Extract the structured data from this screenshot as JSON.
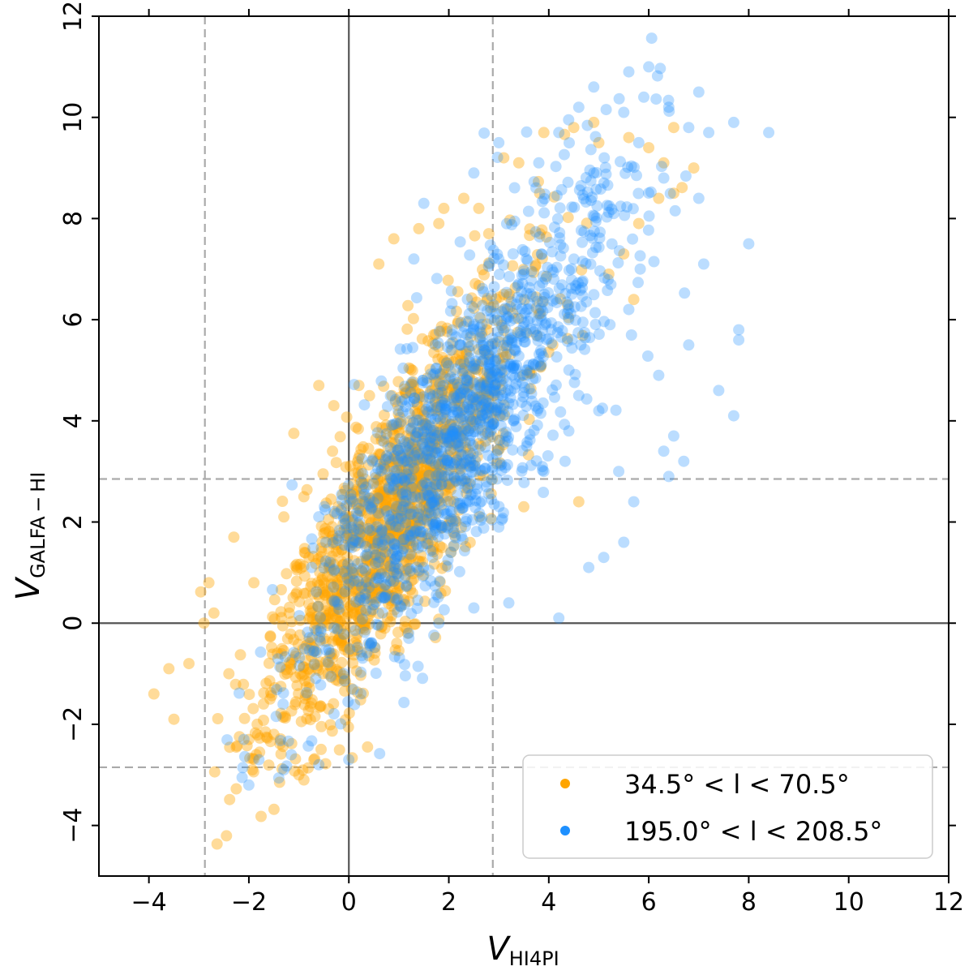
{
  "chart_data": {
    "type": "scatter",
    "title": "",
    "xlabel": {
      "main": "V",
      "sub": "HI4PI"
    },
    "ylabel": {
      "main": "V",
      "sub": "GALFA − HI"
    },
    "xlim": [
      -5,
      12
    ],
    "ylim": [
      -5,
      12
    ],
    "xticks": [
      -4,
      -2,
      0,
      2,
      4,
      6,
      8,
      10,
      12
    ],
    "yticks": [
      -4,
      -2,
      0,
      2,
      4,
      6,
      8,
      10,
      12
    ],
    "xtick_labels": [
      "−4",
      "−2",
      "0",
      "2",
      "4",
      "6",
      "8",
      "10",
      "12"
    ],
    "ytick_labels": [
      "−4",
      "−2",
      "0",
      "2",
      "4",
      "6",
      "8",
      "10",
      "12"
    ],
    "grid": false,
    "reference_lines": {
      "solid": {
        "x": 0,
        "y": 0,
        "color": "#555555"
      },
      "dashed": {
        "x": [
          -2.88,
          2.88
        ],
        "y": [
          -2.85,
          2.85
        ],
        "color": "#aaaaaa"
      }
    },
    "legend": {
      "position": "lower-right",
      "entries": [
        {
          "label": "34.5° < l < 70.5°",
          "color": "#ffa500"
        },
        {
          "label": "195.0° < l < 208.5°",
          "color": "#1e90ff"
        }
      ]
    },
    "series": [
      {
        "name": "34.5° < l < 70.5°",
        "color": "#ffa500",
        "opacity": 0.4,
        "cloud": {
          "count": 1500,
          "x_mean": 0.9,
          "x_sd": 1.25,
          "y_slope": 1.45,
          "y_intercept": 0.85,
          "y_sd": 1.2,
          "seed": 11
        },
        "points": [
          [
            -3.9,
            -1.4
          ],
          [
            -3.6,
            -0.9
          ],
          [
            -3.5,
            -1.9
          ],
          [
            -3.2,
            -0.8
          ],
          [
            -2.9,
            -0.0
          ],
          [
            -2.8,
            0.8
          ],
          [
            -2.7,
            0.2
          ],
          [
            -2.4,
            -1.0
          ],
          [
            -2.3,
            1.7
          ],
          [
            -2.0,
            -2.3
          ],
          [
            -1.9,
            0.8
          ],
          [
            -1.5,
            -2.2
          ],
          [
            -1.0,
            -3.0
          ],
          [
            -0.9,
            -3.1
          ],
          [
            -0.7,
            -2.7
          ],
          [
            0.9,
            7.6
          ],
          [
            1.4,
            7.8
          ],
          [
            1.8,
            7.9
          ],
          [
            1.9,
            8.2
          ],
          [
            2.3,
            8.4
          ],
          [
            2.6,
            8.2
          ],
          [
            3.1,
            9.2
          ],
          [
            3.4,
            9.1
          ],
          [
            3.9,
            9.7
          ],
          [
            4.5,
            9.8
          ],
          [
            4.9,
            9.9
          ],
          [
            5.0,
            9.5
          ],
          [
            5.6,
            9.6
          ],
          [
            6.0,
            9.4
          ],
          [
            6.3,
            9.1
          ],
          [
            6.5,
            9.8
          ],
          [
            6.9,
            9.0
          ],
          [
            6.2,
            8.4
          ],
          [
            6.5,
            8.5
          ],
          [
            5.8,
            7.9
          ],
          [
            5.5,
            7.3
          ],
          [
            5.2,
            6.9
          ],
          [
            5.7,
            6.4
          ],
          [
            4.6,
            2.4
          ],
          [
            3.5,
            2.3
          ],
          [
            3.1,
            6.5
          ],
          [
            2.8,
            7.7
          ],
          [
            -0.6,
            4.7
          ],
          [
            -0.3,
            4.3
          ],
          [
            -0.9,
            2.5
          ],
          [
            -1.3,
            2.1
          ],
          [
            0.2,
            4.7
          ],
          [
            0.6,
            7.1
          ]
        ]
      },
      {
        "name": "195.0° < l < 208.5°",
        "color": "#1e90ff",
        "opacity": 0.3,
        "cloud": {
          "count": 1300,
          "x_mean": 2.2,
          "x_sd": 1.6,
          "y_slope": 1.3,
          "y_intercept": 0.9,
          "y_sd": 1.3,
          "seed": 29
        },
        "points": [
          [
            -2.0,
            -3.2
          ],
          [
            -2.1,
            -2.3
          ],
          [
            -1.8,
            -2.7
          ],
          [
            -1.3,
            -2.9
          ],
          [
            -0.6,
            -2.8
          ],
          [
            0.0,
            -2.7
          ],
          [
            0.7,
            0.5
          ],
          [
            1.2,
            -0.3
          ],
          [
            1.8,
            0.0
          ],
          [
            2.5,
            0.3
          ],
          [
            3.2,
            0.4
          ],
          [
            4.2,
            0.1
          ],
          [
            4.8,
            1.1
          ],
          [
            5.1,
            1.3
          ],
          [
            5.5,
            1.6
          ],
          [
            5.7,
            2.4
          ],
          [
            5.4,
            3.0
          ],
          [
            6.3,
            3.4
          ],
          [
            6.5,
            3.7
          ],
          [
            6.4,
            2.9
          ],
          [
            6.7,
            3.2
          ],
          [
            7.4,
            4.6
          ],
          [
            7.7,
            4.1
          ],
          [
            7.8,
            5.6
          ],
          [
            7.8,
            5.8
          ],
          [
            6.8,
            5.5
          ],
          [
            6.2,
            4.9
          ],
          [
            7.1,
            7.1
          ],
          [
            8.0,
            7.5
          ],
          [
            7.0,
            8.4
          ],
          [
            6.8,
            9.8
          ],
          [
            7.2,
            9.7
          ],
          [
            7.7,
            9.9
          ],
          [
            8.4,
            9.7
          ],
          [
            6.0,
            11.0
          ],
          [
            5.6,
            10.9
          ],
          [
            5.9,
            10.4
          ],
          [
            6.4,
            10.2
          ],
          [
            7.0,
            10.5
          ],
          [
            4.9,
            10.6
          ],
          [
            4.6,
            10.2
          ],
          [
            5.5,
            10.1
          ],
          [
            6.3,
            8.8
          ],
          [
            5.8,
            9.5
          ],
          [
            3.0,
            9.5
          ],
          [
            2.5,
            8.9
          ],
          [
            1.5,
            8.3
          ],
          [
            1.3,
            7.2
          ],
          [
            4.2,
            9.7
          ],
          [
            3.8,
            9.1
          ],
          [
            4.9,
            8.9
          ],
          [
            5.3,
            8.1
          ],
          [
            5.6,
            6.2
          ],
          [
            4.1,
            6.8
          ],
          [
            3.6,
            5.1
          ],
          [
            4.6,
            4.5
          ],
          [
            3.9,
            3.0
          ],
          [
            4.4,
            3.8
          ],
          [
            5.0,
            4.2
          ],
          [
            3.0,
            1.9
          ]
        ]
      }
    ]
  }
}
